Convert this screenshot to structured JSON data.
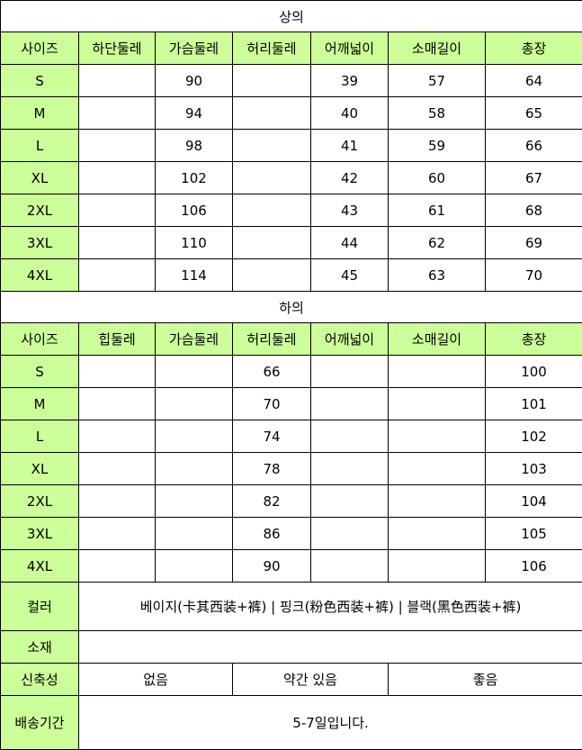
{
  "colors": {
    "header_bg": "#ccff99",
    "border": "#000000"
  },
  "top": {
    "title": "상의",
    "headers": [
      "사이즈",
      "하단둘레",
      "가슴둘레",
      "허리둘레",
      "어깨넓이",
      "소매길이",
      "총장"
    ],
    "rows": [
      [
        "S",
        "",
        "90",
        "",
        "39",
        "57",
        "64"
      ],
      [
        "M",
        "",
        "94",
        "",
        "40",
        "58",
        "65"
      ],
      [
        "L",
        "",
        "98",
        "",
        "41",
        "59",
        "66"
      ],
      [
        "XL",
        "",
        "102",
        "",
        "42",
        "60",
        "67"
      ],
      [
        "2XL",
        "",
        "106",
        "",
        "43",
        "61",
        "68"
      ],
      [
        "3XL",
        "",
        "110",
        "",
        "44",
        "62",
        "69"
      ],
      [
        "4XL",
        "",
        "114",
        "",
        "45",
        "63",
        "70"
      ]
    ]
  },
  "bottom": {
    "title": "하의",
    "headers": [
      "사이즈",
      "힙둘레",
      "가슴둘레",
      "허리둘레",
      "어깨넓이",
      "소매길이",
      "총장"
    ],
    "rows": [
      [
        "S",
        "",
        "",
        "66",
        "",
        "",
        "100"
      ],
      [
        "M",
        "",
        "",
        "70",
        "",
        "",
        "101"
      ],
      [
        "L",
        "",
        "",
        "74",
        "",
        "",
        "102"
      ],
      [
        "XL",
        "",
        "",
        "78",
        "",
        "",
        "103"
      ],
      [
        "2XL",
        "",
        "",
        "82",
        "",
        "",
        "104"
      ],
      [
        "3XL",
        "",
        "",
        "86",
        "",
        "",
        "105"
      ],
      [
        "4XL",
        "",
        "",
        "90",
        "",
        "",
        "106"
      ]
    ]
  },
  "info": {
    "color_label": "컬러",
    "color_value": "베이지(卡其西装+裤) | 핑크(粉色西装+裤) | 블랙(黑色西装+裤)",
    "material_label": "소재",
    "material_value": "",
    "stretch_label": "신축성",
    "stretch_options": [
      "없음",
      "약간 있음",
      "좋음"
    ],
    "shipping_label": "배송기간",
    "shipping_value": "5-7일입니다."
  }
}
